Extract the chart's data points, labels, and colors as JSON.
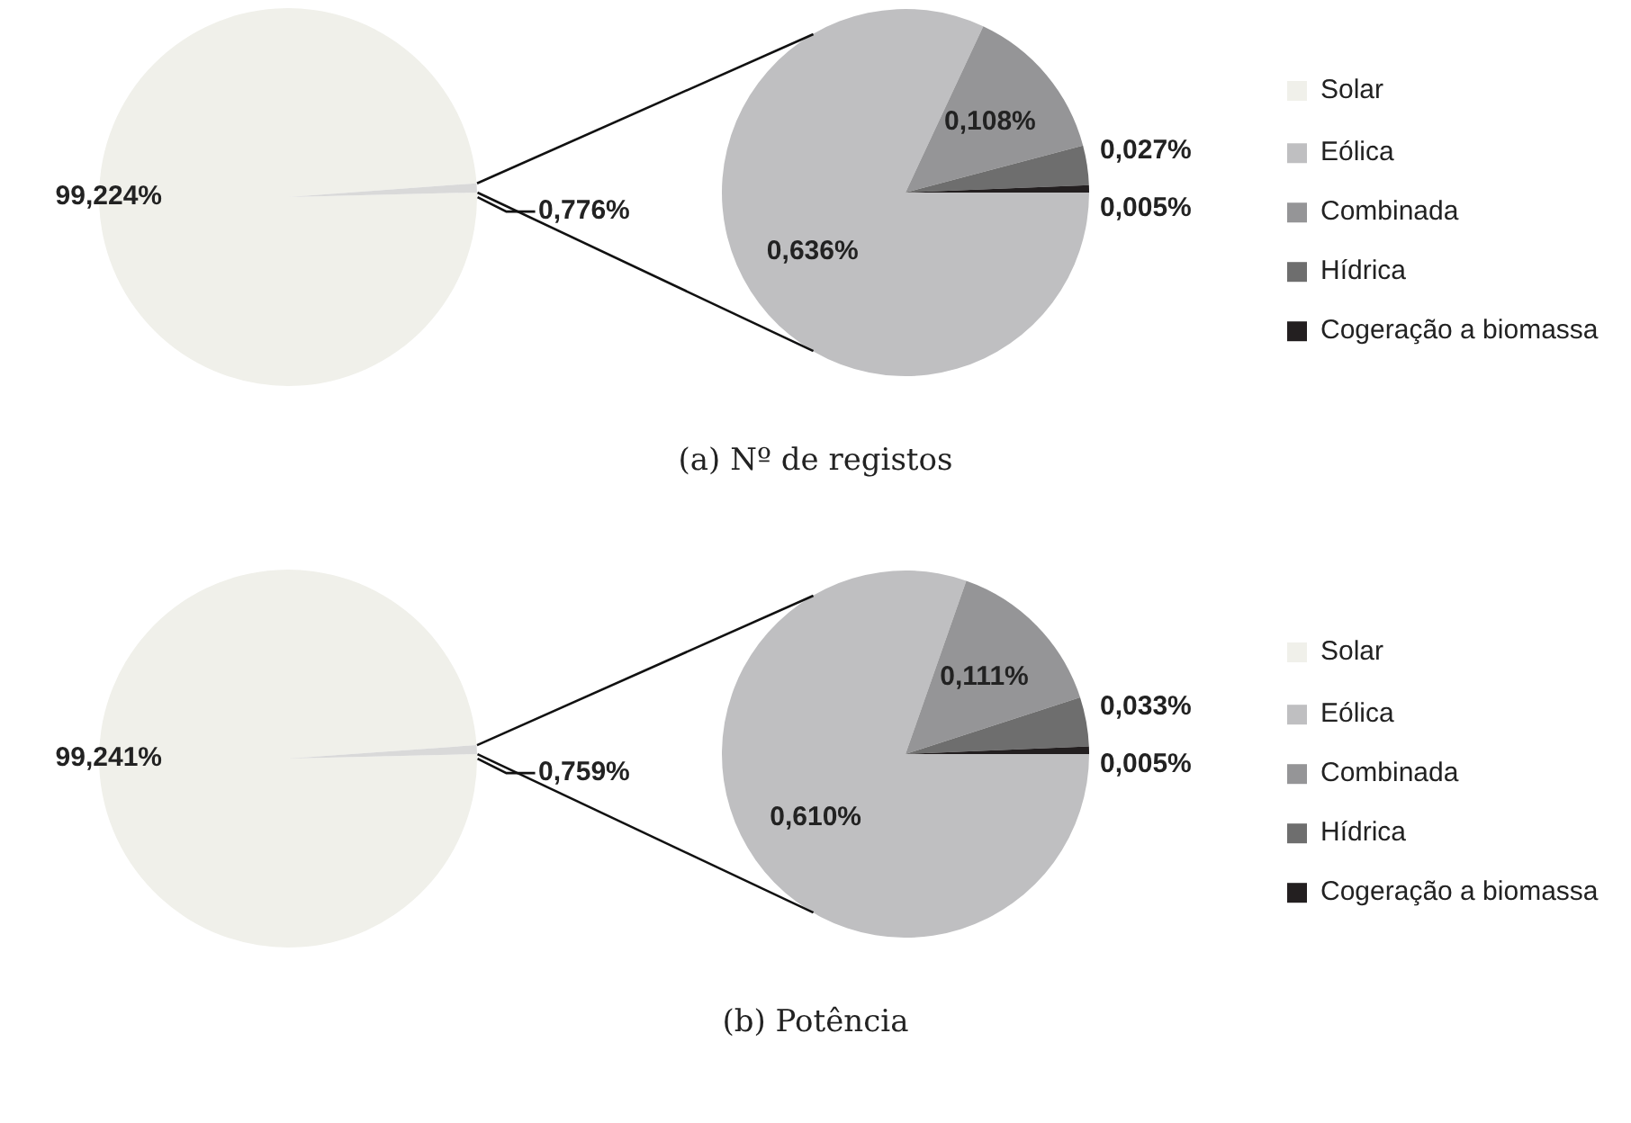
{
  "chart_data": [
    {
      "type": "pie",
      "categories": [
        "Solar",
        null
      ],
      "values": [
        99.224,
        0.776
      ],
      "value_labels": [
        "99,224%",
        "0,776%"
      ],
      "colors": [
        "#f0f0ea",
        "#d9d9d9"
      ],
      "legend": "right"
    },
    {
      "type": "pie",
      "title": "(a) Nº de registos",
      "categories": [
        "Eólica",
        "Combinada",
        "Hídrica",
        "Cogeração a biomassa"
      ],
      "values": [
        0.636,
        0.108,
        0.027,
        0.005
      ],
      "value_labels": [
        "0,636%",
        "0,108%",
        "0,027%",
        "0,005%"
      ],
      "colors": [
        "#bfbfc1",
        "#959597",
        "#6e6e6e",
        "#231f20"
      ],
      "legend": "right"
    },
    {
      "type": "pie",
      "categories": [
        "Solar",
        null
      ],
      "values": [
        99.241,
        0.759
      ],
      "value_labels": [
        "99,241%",
        "0,759%"
      ],
      "colors": [
        "#f0f0ea",
        "#d9d9d9"
      ],
      "legend": "right"
    },
    {
      "type": "pie",
      "title": "(b) Potência",
      "categories": [
        "Eólica",
        "Combinada",
        "Hídrica",
        "Cogeração a biomassa"
      ],
      "values": [
        0.61,
        0.111,
        0.033,
        0.005
      ],
      "value_labels": [
        "0,610%",
        "0,111%",
        "0,033%",
        "0,005%"
      ],
      "colors": [
        "#bfbfc1",
        "#959597",
        "#6e6e6e",
        "#231f20"
      ],
      "legend": "right"
    }
  ]
}
